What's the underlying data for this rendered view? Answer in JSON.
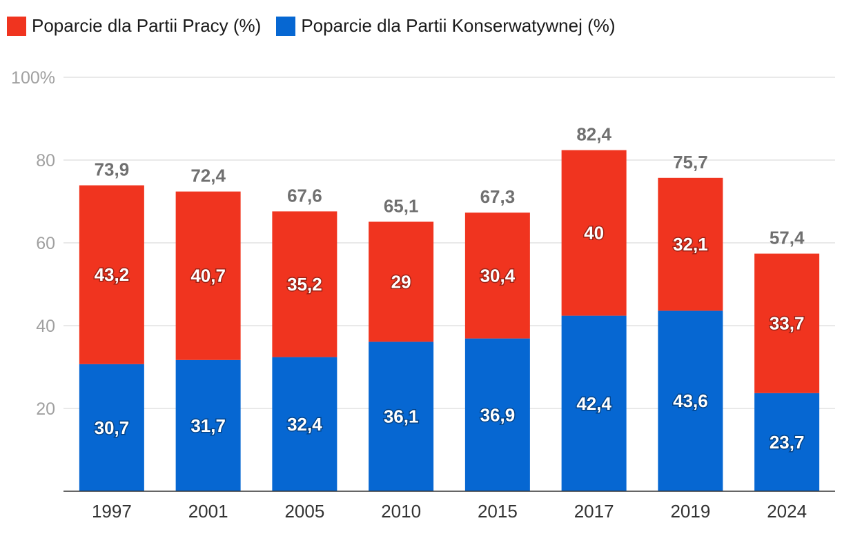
{
  "colors": {
    "labour": "#f0341f",
    "conservative": "#0667d2"
  },
  "legend": {
    "labour": "Poparcie dla Partii Pracy (%)",
    "conservative": "Poparcie dla Partii Konserwatywnej (%)"
  },
  "chart_data": {
    "type": "bar",
    "stacked": true,
    "categories": [
      "1997",
      "2001",
      "2005",
      "2010",
      "2015",
      "2017",
      "2019",
      "2024"
    ],
    "series": [
      {
        "name": "Poparcie dla Partii Konserwatywnej (%)",
        "key": "conservative",
        "values": [
          30.7,
          31.7,
          32.4,
          36.1,
          36.9,
          42.4,
          43.6,
          23.7
        ],
        "labels": [
          "30,7",
          "31,7",
          "32,4",
          "36,1",
          "36,9",
          "42,4",
          "43,6",
          "23,7"
        ]
      },
      {
        "name": "Poparcie dla Partii Pracy (%)",
        "key": "labour",
        "values": [
          43.2,
          40.7,
          35.2,
          29,
          30.4,
          40,
          32.1,
          33.7
        ],
        "labels": [
          "43,2",
          "40,7",
          "35,2",
          "29",
          "30,4",
          "40",
          "32,1",
          "33,7"
        ]
      }
    ],
    "totals": [
      73.9,
      72.4,
      67.6,
      65.1,
      67.3,
      82.4,
      75.7,
      57.4
    ],
    "total_labels": [
      "73,9",
      "72,4",
      "67,6",
      "65,1",
      "67,3",
      "82,4",
      "75,7",
      "57,4"
    ],
    "yticks": [
      20,
      40,
      60,
      80,
      100
    ],
    "ytick_labels": [
      "20",
      "40",
      "60",
      "80",
      "100%"
    ],
    "ylim": [
      0,
      100
    ],
    "title": "",
    "xlabel": "",
    "ylabel": "",
    "grid": true,
    "legend_position": "top-left"
  }
}
